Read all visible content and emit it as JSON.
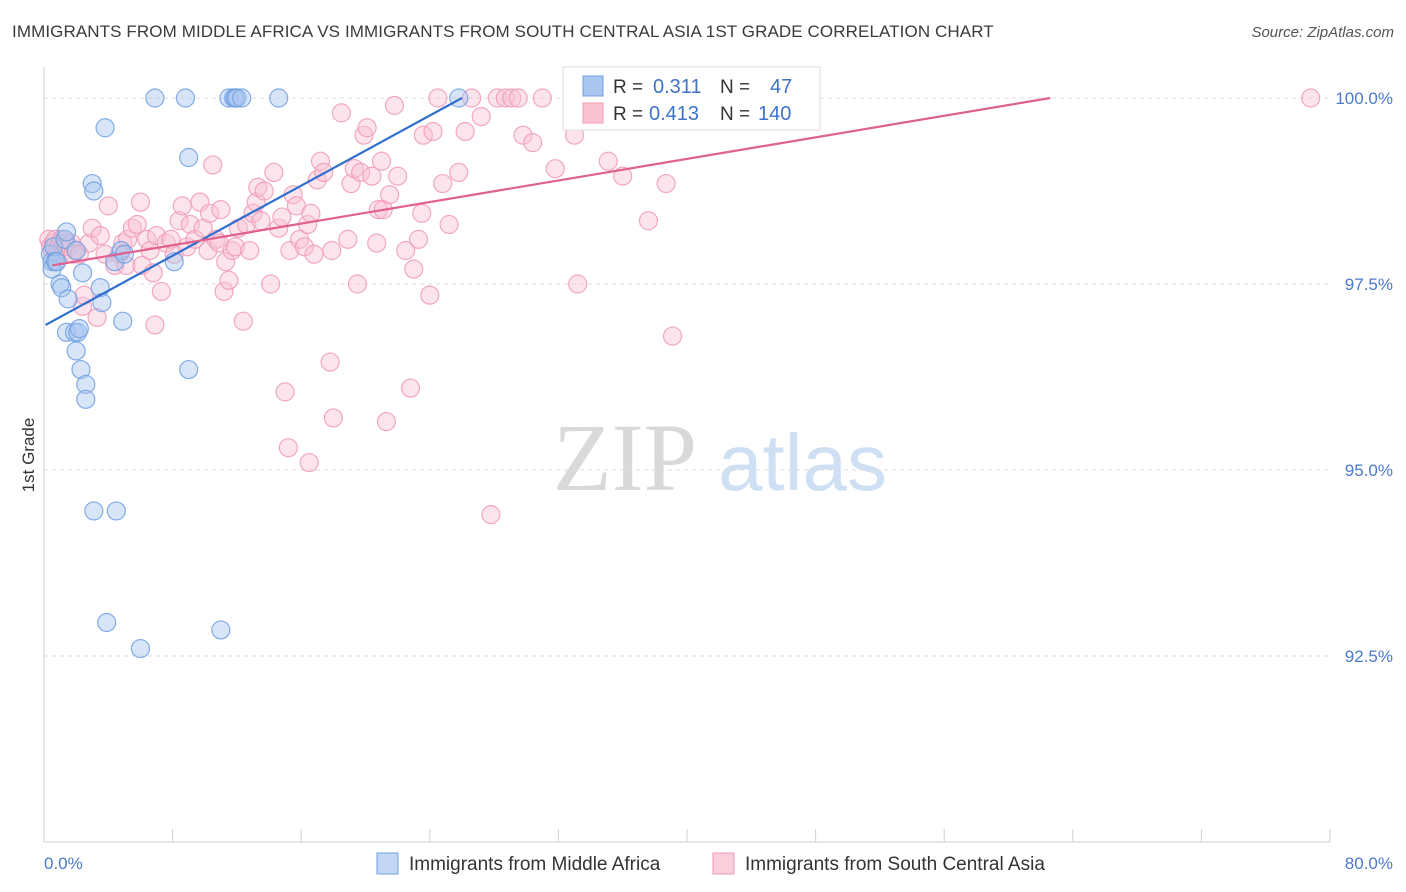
{
  "header": {
    "title": "IMMIGRANTS FROM MIDDLE AFRICA VS IMMIGRANTS FROM SOUTH CENTRAL ASIA 1ST GRADE CORRELATION CHART",
    "source": "Source: ZipAtlas.com"
  },
  "watermark": {
    "zip": "ZIP",
    "atlas": "atlas"
  },
  "stats": {
    "series1": {
      "r_label": "R =",
      "r_value": "0.311",
      "n_label": "N =",
      "n_value": "47"
    },
    "series2": {
      "r_label": "R =",
      "r_value": "0.413",
      "n_label": "N =",
      "n_value": "140"
    }
  },
  "chart_data": {
    "type": "scatter",
    "title": "IMMIGRANTS FROM MIDDLE AFRICA VS IMMIGRANTS FROM SOUTH CENTRAL ASIA 1ST GRADE CORRELATION CHART",
    "xlabel": "",
    "ylabel": "1st Grade",
    "xlim": [
      0,
      80
    ],
    "ylim": [
      89.95,
      100.4
    ],
    "x_tick_labels": [
      "0.0%",
      "80.0%"
    ],
    "y_ticks": [
      {
        "value": 100.0,
        "label": "100.0%"
      },
      {
        "value": 97.5,
        "label": "97.5%"
      },
      {
        "value": 95.0,
        "label": "95.0%"
      },
      {
        "value": 92.5,
        "label": "92.5%"
      }
    ],
    "legend_position": "bottom",
    "series": [
      {
        "name": "Immigrants from Middle Africa",
        "color": "#6f9fe0",
        "fill": "#a9c6f0",
        "line_color": "#2f6fcf",
        "trend": {
          "x": [
            0.1,
            26.0
          ],
          "y": [
            96.95,
            100.0
          ]
        },
        "points": [
          [
            0.4,
            97.9
          ],
          [
            0.5,
            97.8
          ],
          [
            0.5,
            97.7
          ],
          [
            0.6,
            98.0
          ],
          [
            0.7,
            97.8
          ],
          [
            0.8,
            97.8
          ],
          [
            1.0,
            97.5
          ],
          [
            1.1,
            97.45
          ],
          [
            1.3,
            98.1
          ],
          [
            1.4,
            98.2
          ],
          [
            1.5,
            97.3
          ],
          [
            1.4,
            96.85
          ],
          [
            1.9,
            96.85
          ],
          [
            2.1,
            96.85
          ],
          [
            2.2,
            96.9
          ],
          [
            2.0,
            96.6
          ],
          [
            2.3,
            96.35
          ],
          [
            2.4,
            97.65
          ],
          [
            2.6,
            96.15
          ],
          [
            2.6,
            95.95
          ],
          [
            3.0,
            98.85
          ],
          [
            3.1,
            98.75
          ],
          [
            3.1,
            94.45
          ],
          [
            3.5,
            97.45
          ],
          [
            3.6,
            97.25
          ],
          [
            3.8,
            99.6
          ],
          [
            3.9,
            92.95
          ],
          [
            4.4,
            97.8
          ],
          [
            4.5,
            94.45
          ],
          [
            4.8,
            97.95
          ],
          [
            4.9,
            97.0
          ],
          [
            5.0,
            97.9
          ],
          [
            6.0,
            92.6
          ],
          [
            6.9,
            100.0
          ],
          [
            8.1,
            97.8
          ],
          [
            8.8,
            100.0
          ],
          [
            9.0,
            99.2
          ],
          [
            9.0,
            96.35
          ],
          [
            11.0,
            92.85
          ],
          [
            11.5,
            100.0
          ],
          [
            11.8,
            100.0
          ],
          [
            11.9,
            100.0
          ],
          [
            12.0,
            100.0
          ],
          [
            12.3,
            100.0
          ],
          [
            14.6,
            100.0
          ],
          [
            25.8,
            100.0
          ],
          [
            2.0,
            97.95
          ]
        ]
      },
      {
        "name": "Immigrants from South Central Asia",
        "color": "#f09ab5",
        "fill": "#f8c4d4",
        "line_color": "#e0608e",
        "trend": {
          "x": [
            0.5,
            62.6
          ],
          "y": [
            97.75,
            100.0
          ]
        },
        "points": [
          [
            0.3,
            98.1
          ],
          [
            0.4,
            98.0
          ],
          [
            0.5,
            97.95
          ],
          [
            0.6,
            98.05
          ],
          [
            0.7,
            98.1
          ],
          [
            0.8,
            97.9
          ],
          [
            0.9,
            98.0
          ],
          [
            1.0,
            98.05
          ],
          [
            1.1,
            98.1
          ],
          [
            1.2,
            98.0
          ],
          [
            1.3,
            97.95
          ],
          [
            1.4,
            98.05
          ],
          [
            1.6,
            98.0
          ],
          [
            1.7,
            98.05
          ],
          [
            1.8,
            97.9
          ],
          [
            2.0,
            97.95
          ],
          [
            2.2,
            97.9
          ],
          [
            2.4,
            97.2
          ],
          [
            2.5,
            97.35
          ],
          [
            2.8,
            98.05
          ],
          [
            3.0,
            98.25
          ],
          [
            3.3,
            97.05
          ],
          [
            3.5,
            98.15
          ],
          [
            3.8,
            97.9
          ],
          [
            4.0,
            98.55
          ],
          [
            4.4,
            97.75
          ],
          [
            4.7,
            97.9
          ],
          [
            4.9,
            98.05
          ],
          [
            5.1,
            97.75
          ],
          [
            5.2,
            98.1
          ],
          [
            5.5,
            98.25
          ],
          [
            5.8,
            98.3
          ],
          [
            6.0,
            98.6
          ],
          [
            6.1,
            97.75
          ],
          [
            6.4,
            98.1
          ],
          [
            6.6,
            97.95
          ],
          [
            6.8,
            97.65
          ],
          [
            6.9,
            96.95
          ],
          [
            7.0,
            98.15
          ],
          [
            7.3,
            97.4
          ],
          [
            7.6,
            98.05
          ],
          [
            7.9,
            98.1
          ],
          [
            8.1,
            97.9
          ],
          [
            8.4,
            98.35
          ],
          [
            8.6,
            98.55
          ],
          [
            8.9,
            98.0
          ],
          [
            9.1,
            98.3
          ],
          [
            9.4,
            98.1
          ],
          [
            9.7,
            98.6
          ],
          [
            9.9,
            98.25
          ],
          [
            10.2,
            97.95
          ],
          [
            10.3,
            98.45
          ],
          [
            10.5,
            99.1
          ],
          [
            10.7,
            98.1
          ],
          [
            10.9,
            98.05
          ],
          [
            11.0,
            98.5
          ],
          [
            11.2,
            97.4
          ],
          [
            11.3,
            97.8
          ],
          [
            11.5,
            97.55
          ],
          [
            11.7,
            97.95
          ],
          [
            11.9,
            98.0
          ],
          [
            12.1,
            98.25
          ],
          [
            12.4,
            97.0
          ],
          [
            12.6,
            98.3
          ],
          [
            12.8,
            97.95
          ],
          [
            13.0,
            98.45
          ],
          [
            13.2,
            98.6
          ],
          [
            13.3,
            98.8
          ],
          [
            13.5,
            98.35
          ],
          [
            13.7,
            98.75
          ],
          [
            14.1,
            97.5
          ],
          [
            14.3,
            99.0
          ],
          [
            14.6,
            98.25
          ],
          [
            14.8,
            98.4
          ],
          [
            15.0,
            96.05
          ],
          [
            15.2,
            95.3
          ],
          [
            15.3,
            97.95
          ],
          [
            15.5,
            98.7
          ],
          [
            15.7,
            98.55
          ],
          [
            15.9,
            98.1
          ],
          [
            16.2,
            98.0
          ],
          [
            16.4,
            98.3
          ],
          [
            16.5,
            95.1
          ],
          [
            16.6,
            98.45
          ],
          [
            16.8,
            97.9
          ],
          [
            17.0,
            98.9
          ],
          [
            17.2,
            99.15
          ],
          [
            17.4,
            99.0
          ],
          [
            17.8,
            96.45
          ],
          [
            17.9,
            97.95
          ],
          [
            18.0,
            95.7
          ],
          [
            18.5,
            99.8
          ],
          [
            18.9,
            98.1
          ],
          [
            19.1,
            98.85
          ],
          [
            19.3,
            99.05
          ],
          [
            19.5,
            97.5
          ],
          [
            19.7,
            99.0
          ],
          [
            19.9,
            99.5
          ],
          [
            20.1,
            99.6
          ],
          [
            20.4,
            98.95
          ],
          [
            20.7,
            98.05
          ],
          [
            20.8,
            98.5
          ],
          [
            21.0,
            99.15
          ],
          [
            21.1,
            98.5
          ],
          [
            21.3,
            95.65
          ],
          [
            21.5,
            98.7
          ],
          [
            21.8,
            99.9
          ],
          [
            22.0,
            98.95
          ],
          [
            22.5,
            97.95
          ],
          [
            22.8,
            96.1
          ],
          [
            23.0,
            97.7
          ],
          [
            23.3,
            98.1
          ],
          [
            23.5,
            98.45
          ],
          [
            23.6,
            99.5
          ],
          [
            24.0,
            97.35
          ],
          [
            24.2,
            99.55
          ],
          [
            24.5,
            100.0
          ],
          [
            24.8,
            98.85
          ],
          [
            25.2,
            98.3
          ],
          [
            25.8,
            99.0
          ],
          [
            26.2,
            99.55
          ],
          [
            26.6,
            100.0
          ],
          [
            27.2,
            99.75
          ],
          [
            27.8,
            94.4
          ],
          [
            28.2,
            100.0
          ],
          [
            28.7,
            100.0
          ],
          [
            29.1,
            100.0
          ],
          [
            29.5,
            100.0
          ],
          [
            29.8,
            99.5
          ],
          [
            30.4,
            99.4
          ],
          [
            31.0,
            100.0
          ],
          [
            31.8,
            99.05
          ],
          [
            33.0,
            99.5
          ],
          [
            33.2,
            97.5
          ],
          [
            35.1,
            99.15
          ],
          [
            36.0,
            98.95
          ],
          [
            37.6,
            98.35
          ],
          [
            38.7,
            98.85
          ],
          [
            39.1,
            96.8
          ],
          [
            78.8,
            100.0
          ]
        ]
      }
    ]
  }
}
